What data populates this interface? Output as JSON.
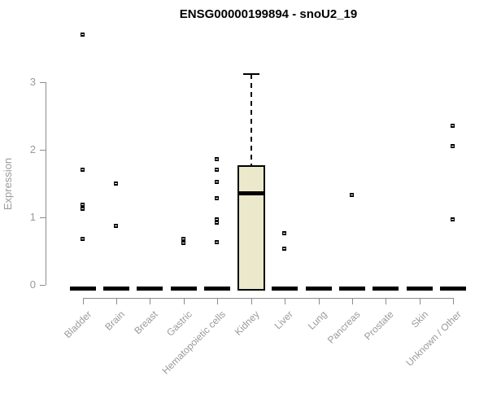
{
  "chart_data": {
    "type": "boxplot",
    "title": "ENSG00000199894 - snoU2_19",
    "xlabel": "",
    "ylabel": "Expression",
    "ylim": [
      0,
      3.9
    ],
    "yticks": [
      0,
      1,
      2,
      3
    ],
    "grid": false,
    "legend": "none",
    "categories": [
      "Bladder",
      "Brain",
      "Breast",
      "Gastric",
      "Hematopoietic cells",
      "Kidney",
      "Liver",
      "Lung",
      "Pancreas",
      "Prostate",
      "Skin",
      "Unknown / Other"
    ],
    "series": [
      {
        "category": "Bladder",
        "q1": 0,
        "median": 0,
        "q3": 0,
        "whisker_low": 0,
        "whisker_high": 0,
        "outliers": [
          3.7,
          1.7,
          1.18,
          1.12,
          0.68
        ]
      },
      {
        "category": "Brain",
        "q1": 0,
        "median": 0,
        "q3": 0,
        "whisker_low": 0,
        "whisker_high": 0,
        "outliers": [
          1.49,
          0.87
        ]
      },
      {
        "category": "Breast",
        "q1": 0,
        "median": 0,
        "q3": 0,
        "whisker_low": 0,
        "whisker_high": 0,
        "outliers": []
      },
      {
        "category": "Gastric",
        "q1": 0,
        "median": 0,
        "q3": 0,
        "whisker_low": 0,
        "whisker_high": 0,
        "outliers": [
          0.67,
          0.61
        ]
      },
      {
        "category": "Hematopoietic cells",
        "q1": 0,
        "median": 0,
        "q3": 0,
        "whisker_low": 0,
        "whisker_high": 0,
        "outliers": [
          1.85,
          1.7,
          1.52,
          1.28,
          0.96,
          0.91,
          0.63
        ]
      },
      {
        "category": "Kidney",
        "q1": 0,
        "median": 1.36,
        "q3": 1.77,
        "whisker_low": 0,
        "whisker_high": 3.12,
        "outliers": []
      },
      {
        "category": "Liver",
        "q1": 0,
        "median": 0,
        "q3": 0,
        "whisker_low": 0,
        "whisker_high": 0,
        "outliers": [
          0.76,
          0.53
        ]
      },
      {
        "category": "Lung",
        "q1": 0,
        "median": 0,
        "q3": 0,
        "whisker_low": 0,
        "whisker_high": 0,
        "outliers": []
      },
      {
        "category": "Pancreas",
        "q1": 0,
        "median": 0,
        "q3": 0,
        "whisker_low": 0,
        "whisker_high": 0,
        "outliers": [
          1.33
        ]
      },
      {
        "category": "Prostate",
        "q1": 0,
        "median": 0,
        "q3": 0,
        "whisker_low": 0,
        "whisker_high": 0,
        "outliers": []
      },
      {
        "category": "Skin",
        "q1": 0,
        "median": 0,
        "q3": 0,
        "whisker_low": 0,
        "whisker_high": 0,
        "outliers": []
      },
      {
        "category": "Unknown / Other",
        "q1": 0,
        "median": 0,
        "q3": 0,
        "whisker_low": 0,
        "whisker_high": 0,
        "outliers": [
          2.35,
          2.05,
          0.96
        ]
      }
    ],
    "colors": {
      "box_fill": "#ece8cb",
      "box_border": "#000000",
      "median": "#000000",
      "outlier": "#000000",
      "zero_bar": "#000000",
      "axis_line": "#8c8c8c",
      "tick_label": "#9a9a9a",
      "title": "#000000",
      "background": "#ffffff"
    }
  }
}
